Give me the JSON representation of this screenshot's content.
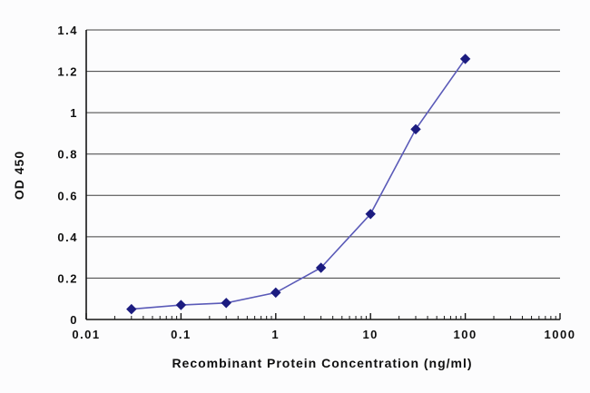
{
  "chart_data": {
    "type": "line",
    "title": "",
    "xlabel": "Recombinant Protein Concentration (ng/ml)",
    "ylabel": "OD 450",
    "x_scale": "log",
    "xlim": [
      0.01,
      1000
    ],
    "ylim": [
      0,
      1.4
    ],
    "x_ticks": [
      0.01,
      0.1,
      1,
      10,
      100,
      1000
    ],
    "x_tick_labels": [
      "0.01",
      "0.1",
      "1",
      "10",
      "100",
      "1000"
    ],
    "y_ticks": [
      0,
      0.2,
      0.4,
      0.6,
      0.8,
      1,
      1.2,
      1.4
    ],
    "y_tick_labels": [
      "0",
      "0.2",
      "0.4",
      "0.6",
      "0.8",
      "1",
      "1.2",
      "1.4"
    ],
    "grid": "horizontal",
    "legend": "none",
    "colors": {
      "line": "#5a5ab8",
      "marker": "#1c1c80",
      "gridline": "#3f3f3f",
      "axis": "#151515"
    },
    "series": [
      {
        "name": "OD 450",
        "x": [
          0.03,
          0.1,
          0.3,
          1,
          3,
          10,
          30,
          100
        ],
        "y": [
          0.05,
          0.07,
          0.08,
          0.13,
          0.25,
          0.51,
          0.92,
          1.26
        ]
      }
    ]
  }
}
